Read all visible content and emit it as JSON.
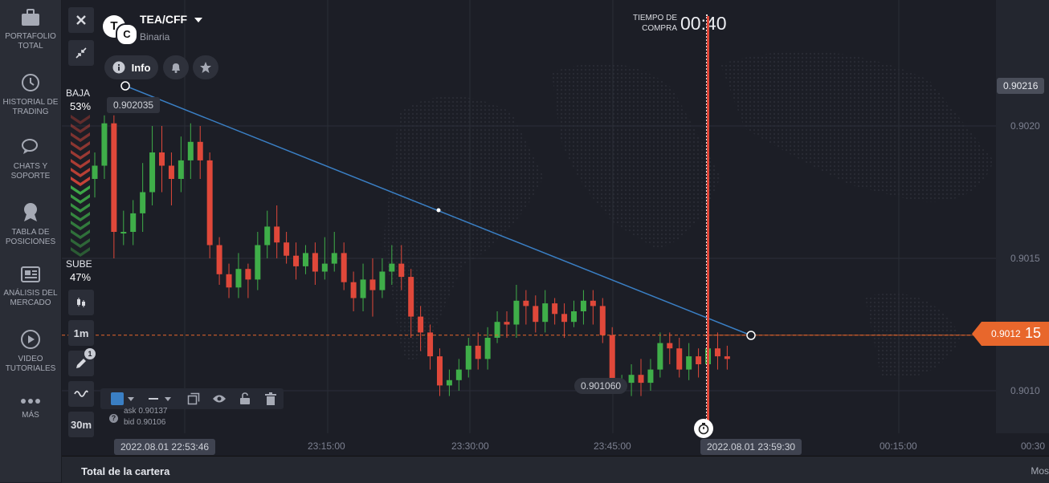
{
  "sidebar": {
    "items": [
      {
        "label1": "PORTAFOLIO",
        "label2": "TOTAL",
        "icon": "briefcase-icon"
      },
      {
        "label1": "HISTORIAL DE",
        "label2": "TRADING",
        "icon": "history-icon"
      },
      {
        "label1": "CHATS Y",
        "label2": "SOPORTE",
        "icon": "chat-icon"
      },
      {
        "label1": "TABLA DE",
        "label2": "POSICIONES",
        "icon": "medal-icon"
      },
      {
        "label1": "ANÁLISIS DEL",
        "label2": "MERCADO",
        "icon": "newspaper-icon"
      },
      {
        "label1": "VIDEO",
        "label2": "TUTORIALES",
        "icon": "play-icon"
      },
      {
        "label1": "MÁS",
        "label2": "",
        "icon": "more-dots-icon"
      }
    ]
  },
  "asset": {
    "name": "TEA/CFF",
    "type": "Binaria",
    "logo_letters": "TC"
  },
  "info_label": "Info",
  "timer": {
    "label1": "TIEMPO DE",
    "label2": "COMPRA",
    "value": "00:40"
  },
  "sentiment": {
    "down_label": "BAJA",
    "down_pct": "53%",
    "up_label": "SUBE",
    "up_pct": "47%",
    "down_ratio": 0.53
  },
  "tools": {
    "timeframe": "1m",
    "interval": "30m",
    "badge": "1"
  },
  "quotes": {
    "ask": "ask 0.90137",
    "bid": "bid 0.90106"
  },
  "trendline": {
    "start_label": "0.902035",
    "mid_label": "0.901060"
  },
  "current_price": {
    "main": "0.9012",
    "tail": "15"
  },
  "price_axis": {
    "top_label": "0.90216",
    "ticks": [
      "0.9020",
      "0.9015",
      "0.9010"
    ]
  },
  "time_axis": {
    "start_label": "2022.08.01 22:53:46",
    "expiry_label": "2022.08.01 23:59:30",
    "ticks": [
      "23:15:00",
      "23:30:00",
      "23:45:00",
      "00:15:00",
      "00:30"
    ]
  },
  "bottom_bar": {
    "label": "Total de la cartera",
    "right": "Mos"
  },
  "colors": {
    "up": "#3fae49",
    "down": "#e0483a",
    "accent": "#e8672c",
    "trend": "#3a7fc4",
    "expiry": "#e0483a"
  },
  "chart_data": {
    "type": "candlestick",
    "candles": [
      [
        0.9018,
        0.90185,
        0.90173,
        0.9019
      ],
      [
        0.90185,
        0.90201,
        0.9018,
        0.90204
      ],
      [
        0.90201,
        0.9016,
        0.9015,
        0.90204
      ],
      [
        0.9016,
        0.9016,
        0.90155,
        0.90168
      ],
      [
        0.9016,
        0.90167,
        0.90155,
        0.90172
      ],
      [
        0.90167,
        0.90175,
        0.9016,
        0.90186
      ],
      [
        0.90175,
        0.9019,
        0.9017,
        0.902
      ],
      [
        0.9019,
        0.90185,
        0.90175,
        0.902
      ],
      [
        0.90185,
        0.9018,
        0.9017,
        0.9019
      ],
      [
        0.9018,
        0.90187,
        0.90175,
        0.90196
      ],
      [
        0.90187,
        0.90194,
        0.9018,
        0.90201
      ],
      [
        0.90194,
        0.90187,
        0.9018,
        0.902
      ],
      [
        0.90187,
        0.90155,
        0.9015,
        0.9019
      ],
      [
        0.90155,
        0.90144,
        0.9014,
        0.90158
      ],
      [
        0.90144,
        0.90139,
        0.90135,
        0.90148
      ],
      [
        0.90139,
        0.90146,
        0.90135,
        0.90152
      ],
      [
        0.90146,
        0.90142,
        0.90135,
        0.90148
      ],
      [
        0.90142,
        0.90155,
        0.90138,
        0.9016
      ],
      [
        0.90155,
        0.90162,
        0.9015,
        0.90168
      ],
      [
        0.90162,
        0.90156,
        0.9015,
        0.9017
      ],
      [
        0.90156,
        0.90151,
        0.90148,
        0.9016
      ],
      [
        0.90151,
        0.90147,
        0.90142,
        0.90156
      ],
      [
        0.90147,
        0.90152,
        0.90144,
        0.90155
      ],
      [
        0.90152,
        0.90145,
        0.9014,
        0.90156
      ],
      [
        0.90145,
        0.90148,
        0.90142,
        0.90158
      ],
      [
        0.90148,
        0.90152,
        0.90145,
        0.9016
      ],
      [
        0.90152,
        0.90141,
        0.90138,
        0.90156
      ],
      [
        0.90141,
        0.90135,
        0.9013,
        0.90145
      ],
      [
        0.90135,
        0.90142,
        0.9013,
        0.90148
      ],
      [
        0.90142,
        0.90138,
        0.90128,
        0.9015
      ],
      [
        0.90138,
        0.90145,
        0.90135,
        0.9015
      ],
      [
        0.90145,
        0.90148,
        0.9014,
        0.90155
      ],
      [
        0.90148,
        0.90143,
        0.90138,
        0.90155
      ],
      [
        0.90143,
        0.90128,
        0.9012,
        0.90146
      ],
      [
        0.90128,
        0.90122,
        0.90115,
        0.90132
      ],
      [
        0.90122,
        0.90113,
        0.90108,
        0.90125
      ],
      [
        0.90113,
        0.90102,
        0.90098,
        0.90116
      ],
      [
        0.90102,
        0.90104,
        0.90098,
        0.90108
      ],
      [
        0.90104,
        0.90108,
        0.901,
        0.90112
      ],
      [
        0.90108,
        0.90117,
        0.90105,
        0.9012
      ],
      [
        0.90117,
        0.90112,
        0.90108,
        0.90122
      ],
      [
        0.90112,
        0.9012,
        0.90108,
        0.90124
      ],
      [
        0.9012,
        0.90126,
        0.90118,
        0.9013
      ],
      [
        0.90126,
        0.90125,
        0.9012,
        0.9013
      ],
      [
        0.90125,
        0.90134,
        0.9012,
        0.9014
      ],
      [
        0.90134,
        0.90132,
        0.90125,
        0.90138
      ],
      [
        0.90132,
        0.90126,
        0.90122,
        0.90136
      ],
      [
        0.90126,
        0.90133,
        0.90122,
        0.90138
      ],
      [
        0.90133,
        0.90129,
        0.90125,
        0.90135
      ],
      [
        0.90129,
        0.90126,
        0.9012,
        0.90133
      ],
      [
        0.90126,
        0.9013,
        0.90124,
        0.90134
      ],
      [
        0.9013,
        0.90134,
        0.90125,
        0.90138
      ],
      [
        0.90134,
        0.90132,
        0.90125,
        0.90138
      ],
      [
        0.90132,
        0.90121,
        0.90118,
        0.90135
      ],
      [
        0.90121,
        0.90103,
        0.901,
        0.90124
      ],
      [
        0.90103,
        0.90103,
        0.90099,
        0.90106
      ],
      [
        0.90103,
        0.90106,
        0.90098,
        0.9011
      ],
      [
        0.90106,
        0.90103,
        0.90098,
        0.90112
      ],
      [
        0.90103,
        0.90108,
        0.901,
        0.90112
      ],
      [
        0.90108,
        0.90118,
        0.90105,
        0.90122
      ],
      [
        0.90118,
        0.90116,
        0.9011,
        0.90122
      ],
      [
        0.90116,
        0.90108,
        0.90105,
        0.9012
      ],
      [
        0.90108,
        0.90113,
        0.90104,
        0.90118
      ],
      [
        0.90113,
        0.9011,
        0.90105,
        0.90116
      ],
      [
        0.9011,
        0.90116,
        0.90105,
        0.90125
      ],
      [
        0.90116,
        0.90113,
        0.90108,
        0.90122
      ],
      [
        0.90113,
        0.90112,
        0.90108,
        0.90117
      ]
    ]
  }
}
